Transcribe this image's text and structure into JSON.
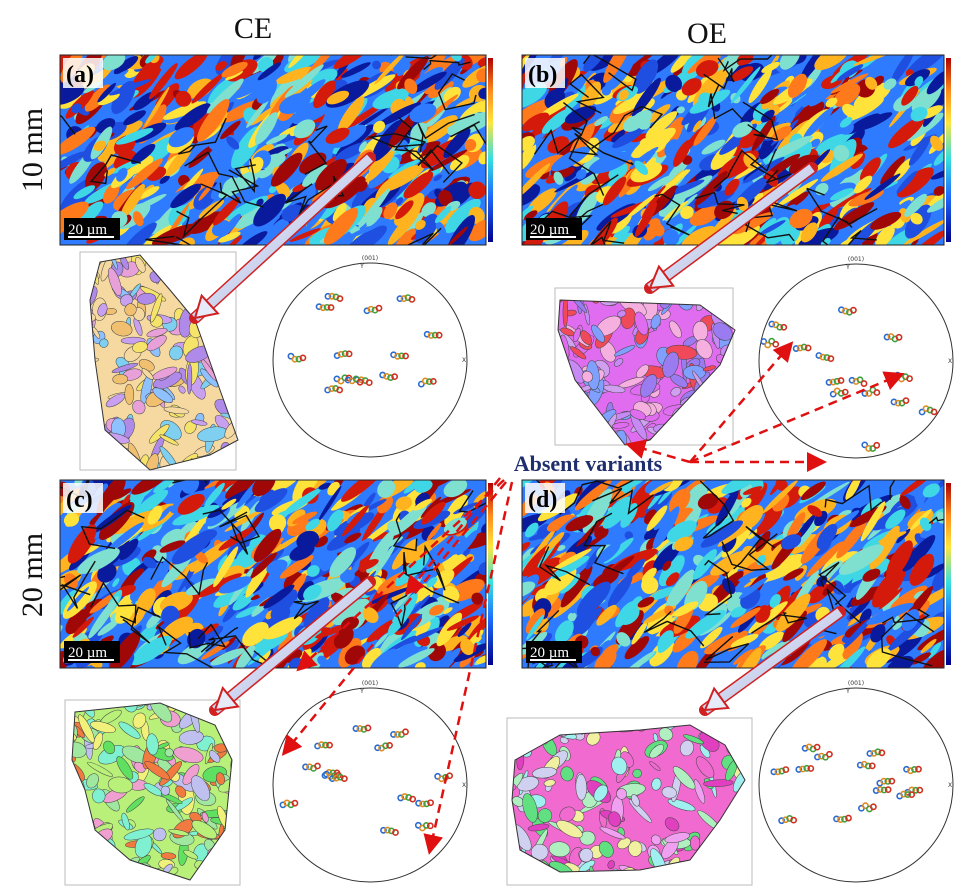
{
  "columns": [
    "CE",
    "OE"
  ],
  "rows": [
    "10 mm",
    "20 mm"
  ],
  "panels": [
    {
      "label": "(a)",
      "scale_bar": "20 µm"
    },
    {
      "label": "(b)",
      "scale_bar": "20 µm"
    },
    {
      "label": "(c)",
      "scale_bar": "20 µm"
    },
    {
      "label": "(d)",
      "scale_bar": "20 µm"
    }
  ],
  "annotation": "Absent variants",
  "pole_figure": {
    "title": "(001)",
    "axis_y": "Y",
    "axis_x": "X"
  }
}
